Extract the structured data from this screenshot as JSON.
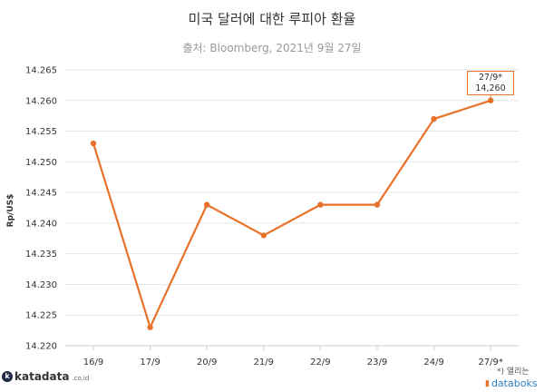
{
  "header": {
    "title": "미국 달러에 대한 루피아 환율",
    "subtitle": "출처: Bloomberg, 2021년 9월 27일"
  },
  "callout": {
    "date": "27/9*",
    "value": "14,260"
  },
  "footer": {
    "brand": "katadata",
    "brand_suffix": ".co.id",
    "note": "*) 열리는",
    "databoks": "databoks",
    "brand_icon": "katadata-logo-icon",
    "databoks_icon": "bar-chart-icon"
  },
  "chart_data": {
    "type": "line",
    "title": "미국 달러에 대한 루피아 환율",
    "subtitle": "출처: Bloomberg, 2021년 9월 27일",
    "xlabel": "",
    "ylabel": "Rp/US$",
    "categories": [
      "16/9",
      "17/9",
      "20/9",
      "21/9",
      "22/9",
      "23/9",
      "24/9",
      "27/9*"
    ],
    "series": [
      {
        "values": [
          14253,
          14223,
          14243,
          14238,
          14243,
          14243,
          14257,
          14260
        ],
        "color": "#e8722a"
      }
    ],
    "ylim": [
      14220,
      14265
    ],
    "yticks": [
      "14.220",
      "14.225",
      "14.230",
      "14.235",
      "14.240",
      "14.245",
      "14.250",
      "14.255",
      "14.260",
      "14.265"
    ],
    "grid": true
  }
}
